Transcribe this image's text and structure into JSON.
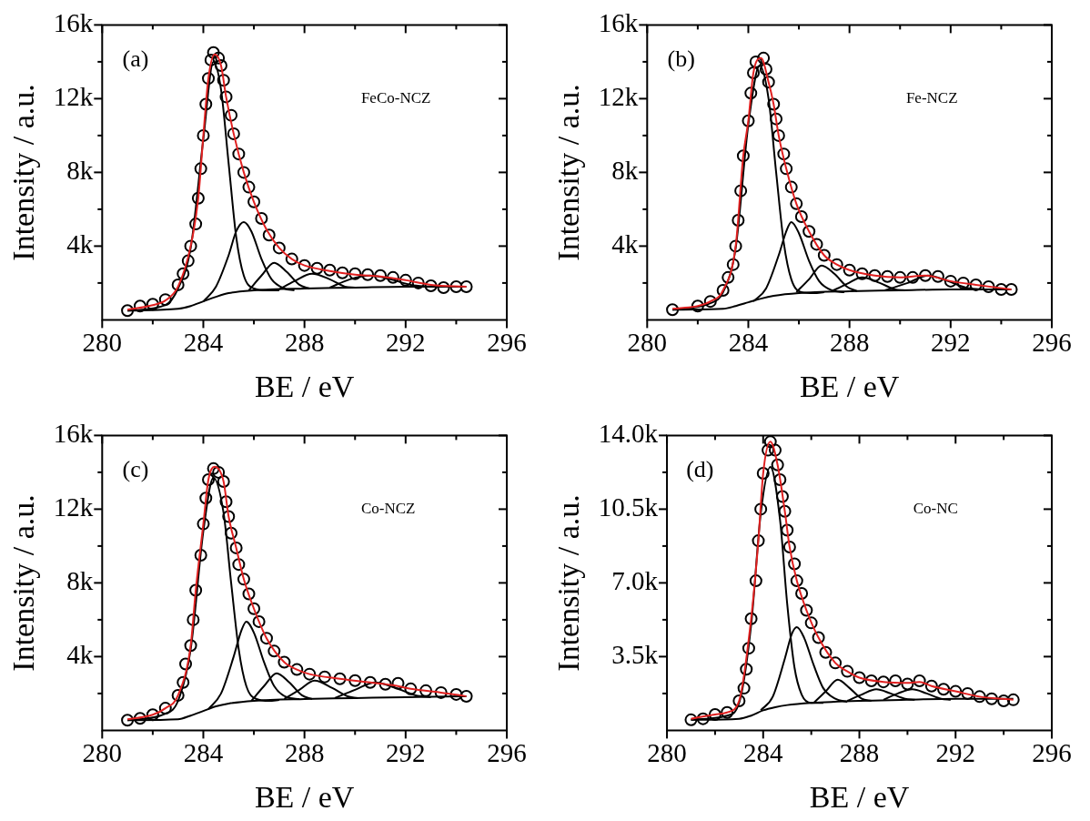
{
  "chart_data": [
    {
      "type": "line",
      "xlabel": "BE / eV",
      "ylabel": "Intensity / a.u.",
      "annotations": [
        "(a)",
        "FeCo-NCZ"
      ],
      "xlim": [
        280,
        296
      ],
      "xticks": [
        280,
        {
          "value": 282,
          "label": null
        },
        284,
        {
          "value": 286,
          "label": null
        },
        288,
        {
          "value": 290,
          "label": null
        },
        292,
        {
          "value": 294,
          "label": null
        },
        296
      ],
      "ylim": [
        0,
        16000
      ],
      "yticks": [
        {
          "value": 2000,
          "label": null
        },
        {
          "value": 4000,
          "label": "4k"
        },
        {
          "value": 6000,
          "label": null
        },
        {
          "value": 8000,
          "label": "8k"
        },
        {
          "value": 10000,
          "label": null
        },
        {
          "value": 12000,
          "label": "12k"
        },
        {
          "value": 14000,
          "label": null
        },
        {
          "value": 16000,
          "label": "16k"
        }
      ],
      "series": [
        {
          "type": "line",
          "color": "#000000",
          "x": [
            281.0,
            283.0,
            283.5,
            284.0,
            284.5,
            285.0,
            286.0,
            288.0,
            290.0,
            292.0,
            294.4
          ],
          "values": [
            500,
            600,
            750,
            1000,
            1250,
            1450,
            1600,
            1700,
            1750,
            1800,
            1800
          ]
        },
        {
          "type": "line",
          "color": "#000000",
          "x": [
            281.0,
            282.5,
            283.0,
            283.5,
            284.0,
            284.4,
            284.7,
            285.0,
            285.3,
            285.6,
            286.0,
            286.5,
            287.0
          ],
          "values": [
            500,
            800,
            1700,
            3900,
            9800,
            14000,
            12500,
            8500,
            4500,
            2400,
            1700,
            1600,
            1600
          ]
        },
        {
          "type": "line",
          "color": "#000000",
          "x": [
            284.0,
            284.5,
            285.0,
            285.3,
            285.6,
            285.9,
            286.3,
            286.7,
            287.2,
            287.6
          ],
          "values": [
            1000,
            1800,
            3500,
            4800,
            5300,
            4800,
            3300,
            2200,
            1700,
            1600
          ]
        },
        {
          "type": "line",
          "color": "#000000",
          "x": [
            285.8,
            286.3,
            286.8,
            287.3,
            287.8,
            288.2
          ],
          "values": [
            1600,
            2400,
            3100,
            2600,
            1900,
            1700
          ]
        },
        {
          "type": "line",
          "color": "#000000",
          "x": [
            287.0,
            287.6,
            288.3,
            289.0,
            289.6,
            290.0
          ],
          "values": [
            1650,
            2100,
            2500,
            2200,
            1800,
            1750
          ]
        },
        {
          "type": "line",
          "color": "#000000",
          "x": [
            289.0,
            289.8,
            290.6,
            291.4,
            292.2,
            293.0
          ],
          "values": [
            1750,
            2200,
            2400,
            2200,
            1900,
            1800
          ]
        },
        {
          "type": "scatter",
          "marker": "circle",
          "color": "#000000",
          "x": [
            281.0,
            281.5,
            282.0,
            282.5,
            283.0,
            283.2,
            283.4,
            283.5,
            283.7,
            283.8,
            283.9,
            284.0,
            284.1,
            284.2,
            284.3,
            284.4,
            284.6,
            284.7,
            284.8,
            284.9,
            285.1,
            285.2,
            285.4,
            285.6,
            285.8,
            286.0,
            286.3,
            286.6,
            287.0,
            287.5,
            288.0,
            288.5,
            289.0,
            289.5,
            290.0,
            290.5,
            291.0,
            291.5,
            292.0,
            292.5,
            293.0,
            293.5,
            294.0,
            294.4
          ],
          "values": [
            500,
            750,
            850,
            1100,
            1900,
            2500,
            3200,
            4000,
            5200,
            6600,
            8200,
            10000,
            11700,
            13100,
            14100,
            14500,
            14200,
            13800,
            13000,
            12100,
            11100,
            10100,
            9000,
            8000,
            7200,
            6400,
            5500,
            4600,
            3900,
            3300,
            2950,
            2800,
            2700,
            2550,
            2500,
            2450,
            2400,
            2300,
            2150,
            2000,
            1850,
            1750,
            1800,
            1800
          ]
        },
        {
          "type": "line",
          "color": "#e02020",
          "x": [
            281.0,
            282.0,
            282.5,
            283.0,
            283.5,
            283.8,
            284.0,
            284.2,
            284.45,
            284.7,
            284.9,
            285.2,
            285.6,
            286.0,
            286.5,
            287.0,
            287.5,
            288.0,
            289.0,
            290.0,
            291.0,
            292.0,
            293.0,
            294.4
          ],
          "values": [
            550,
            800,
            1050,
            1800,
            4000,
            6600,
            10000,
            13100,
            14400,
            13800,
            12100,
            10100,
            8000,
            6400,
            4900,
            3900,
            3300,
            2950,
            2650,
            2450,
            2350,
            2150,
            1900,
            1800
          ]
        }
      ]
    },
    {
      "type": "line",
      "xlabel": "BE / eV",
      "ylabel": "Intensity / a.u.",
      "annotations": [
        "(b)",
        "Fe-NCZ"
      ],
      "xlim": [
        280,
        296
      ],
      "xticks": [
        280,
        {
          "value": 282,
          "label": null
        },
        284,
        {
          "value": 286,
          "label": null
        },
        288,
        {
          "value": 290,
          "label": null
        },
        292,
        {
          "value": 294,
          "label": null
        },
        296
      ],
      "ylim": [
        0,
        16000
      ],
      "yticks": [
        {
          "value": 2000,
          "label": null
        },
        {
          "value": 4000,
          "label": "4k"
        },
        {
          "value": 6000,
          "label": null
        },
        {
          "value": 8000,
          "label": "8k"
        },
        {
          "value": 10000,
          "label": null
        },
        {
          "value": 12000,
          "label": "12k"
        },
        {
          "value": 14000,
          "label": null
        },
        {
          "value": 16000,
          "label": "16k"
        }
      ],
      "series": [
        {
          "type": "line",
          "color": "#000000",
          "x": [
            281.0,
            283.0,
            283.5,
            284.0,
            284.5,
            285.0,
            286.0,
            288.0,
            290.0,
            292.0,
            294.4
          ],
          "values": [
            550,
            600,
            750,
            950,
            1150,
            1300,
            1450,
            1550,
            1600,
            1650,
            1650
          ]
        },
        {
          "type": "line",
          "color": "#000000",
          "x": [
            281.0,
            282.5,
            283.0,
            283.5,
            284.0,
            284.45,
            284.8,
            285.1,
            285.4,
            285.7,
            286.1,
            286.6,
            287.0
          ],
          "values": [
            550,
            900,
            1500,
            3900,
            10600,
            13800,
            12000,
            8000,
            4200,
            2200,
            1500,
            1450,
            1500
          ]
        },
        {
          "type": "line",
          "color": "#000000",
          "x": [
            284.2,
            284.7,
            285.2,
            285.5,
            285.7,
            286.0,
            286.4,
            286.8,
            287.3,
            287.8
          ],
          "values": [
            1000,
            1700,
            3500,
            4800,
            5300,
            4700,
            3200,
            2100,
            1600,
            1500
          ]
        },
        {
          "type": "line",
          "color": "#000000",
          "x": [
            285.9,
            286.4,
            286.9,
            287.4,
            287.9,
            288.3
          ],
          "values": [
            1500,
            2200,
            2950,
            2500,
            1800,
            1550
          ]
        },
        {
          "type": "line",
          "color": "#000000",
          "x": [
            287.3,
            287.9,
            288.5,
            289.2,
            289.8,
            290.2
          ],
          "values": [
            1550,
            1950,
            2300,
            2000,
            1650,
            1600
          ]
        },
        {
          "type": "line",
          "color": "#000000",
          "x": [
            289.4,
            290.3,
            291.1,
            291.9,
            292.6,
            293.2
          ],
          "values": [
            1600,
            2000,
            2400,
            2100,
            1750,
            1650
          ]
        },
        {
          "type": "scatter",
          "marker": "circle",
          "color": "#000000",
          "x": [
            281.0,
            282.0,
            282.5,
            283.0,
            283.2,
            283.4,
            283.5,
            283.6,
            283.7,
            283.8,
            284.0,
            284.1,
            284.2,
            284.3,
            284.6,
            284.7,
            284.8,
            285.0,
            285.1,
            285.2,
            285.4,
            285.5,
            285.7,
            285.9,
            286.1,
            286.4,
            286.7,
            287.0,
            287.5,
            288.0,
            288.5,
            289.0,
            289.5,
            290.0,
            290.5,
            291.0,
            291.5,
            292.0,
            292.5,
            293.0,
            293.5,
            294.0,
            294.4
          ],
          "values": [
            550,
            750,
            1000,
            1600,
            2300,
            3000,
            4000,
            5400,
            7000,
            8900,
            10800,
            12300,
            13400,
            14000,
            14200,
            13600,
            12900,
            11700,
            10900,
            10000,
            9000,
            8200,
            7200,
            6300,
            5600,
            4800,
            4100,
            3500,
            3000,
            2700,
            2500,
            2400,
            2350,
            2300,
            2300,
            2400,
            2350,
            2100,
            2000,
            1900,
            1800,
            1650,
            1650
          ]
        },
        {
          "type": "line",
          "color": "#e02020",
          "x": [
            281.0,
            282.0,
            282.5,
            283.0,
            283.5,
            283.8,
            284.0,
            284.2,
            284.5,
            284.8,
            285.0,
            285.2,
            285.5,
            285.9,
            286.4,
            287.0,
            287.5,
            288.0,
            289.0,
            290.0,
            291.0,
            292.0,
            293.0,
            294.4
          ],
          "values": [
            600,
            750,
            1000,
            1600,
            4000,
            8900,
            10800,
            13400,
            14200,
            12900,
            11700,
            10000,
            8200,
            6300,
            4800,
            3500,
            3000,
            2700,
            2400,
            2300,
            2400,
            2100,
            1900,
            1650
          ]
        }
      ]
    },
    {
      "type": "line",
      "xlabel": "BE / eV",
      "ylabel": "Intensity / a.u.",
      "annotations": [
        "(c)",
        "Co-NCZ"
      ],
      "xlim": [
        280,
        296
      ],
      "xticks": [
        280,
        {
          "value": 282,
          "label": null
        },
        284,
        {
          "value": 286,
          "label": null
        },
        288,
        {
          "value": 290,
          "label": null
        },
        292,
        {
          "value": 294,
          "label": null
        },
        296
      ],
      "ylim": [
        0,
        16000
      ],
      "yticks": [
        {
          "value": 2000,
          "label": null
        },
        {
          "value": 4000,
          "label": "4k"
        },
        {
          "value": 6000,
          "label": null
        },
        {
          "value": 8000,
          "label": "8k"
        },
        {
          "value": 10000,
          "label": null
        },
        {
          "value": 12000,
          "label": "12k"
        },
        {
          "value": 14000,
          "label": null
        },
        {
          "value": 16000,
          "label": "16k"
        }
      ],
      "series": [
        {
          "type": "line",
          "color": "#000000",
          "x": [
            281.0,
            283.0,
            283.5,
            284.0,
            284.5,
            285.0,
            286.0,
            288.0,
            290.0,
            292.0,
            294.4
          ],
          "values": [
            550,
            600,
            800,
            1050,
            1300,
            1450,
            1600,
            1700,
            1750,
            1800,
            1850
          ]
        },
        {
          "type": "line",
          "color": "#000000",
          "x": [
            281.0,
            282.5,
            283.0,
            283.5,
            284.0,
            284.4,
            284.8,
            285.1,
            285.4,
            285.7,
            286.1,
            286.6,
            287.0
          ],
          "values": [
            550,
            900,
            1600,
            4400,
            10800,
            13700,
            11800,
            8000,
            4400,
            2400,
            1700,
            1600,
            1650
          ]
        },
        {
          "type": "line",
          "color": "#000000",
          "x": [
            284.2,
            284.7,
            285.2,
            285.5,
            285.7,
            286.0,
            286.4,
            286.8,
            287.3,
            287.8
          ],
          "values": [
            1150,
            2000,
            4000,
            5400,
            5900,
            5300,
            3700,
            2400,
            1800,
            1700
          ]
        },
        {
          "type": "line",
          "color": "#000000",
          "x": [
            285.9,
            286.4,
            286.9,
            287.4,
            287.9,
            288.3
          ],
          "values": [
            1600,
            2400,
            3100,
            2600,
            1900,
            1700
          ]
        },
        {
          "type": "line",
          "color": "#000000",
          "x": [
            287.2,
            287.8,
            288.4,
            289.1,
            289.7,
            290.1
          ],
          "values": [
            1700,
            2200,
            2700,
            2300,
            1850,
            1750
          ]
        },
        {
          "type": "line",
          "color": "#000000",
          "x": [
            289.2,
            290.0,
            290.8,
            291.6,
            292.4,
            293.0
          ],
          "values": [
            1750,
            2200,
            2600,
            2300,
            1900,
            1800
          ]
        },
        {
          "type": "scatter",
          "marker": "circle",
          "color": "#000000",
          "x": [
            281.0,
            281.5,
            282.0,
            282.5,
            283.0,
            283.2,
            283.3,
            283.5,
            283.6,
            283.7,
            283.9,
            284.0,
            284.1,
            284.2,
            284.4,
            284.6,
            284.8,
            284.9,
            285.0,
            285.1,
            285.3,
            285.4,
            285.6,
            285.8,
            286.0,
            286.2,
            286.5,
            286.8,
            287.2,
            287.7,
            288.2,
            288.8,
            289.4,
            290.0,
            290.6,
            291.2,
            291.7,
            292.2,
            292.8,
            293.4,
            294.0,
            294.4
          ],
          "values": [
            550,
            650,
            850,
            1200,
            1900,
            2600,
            3600,
            4600,
            6000,
            7600,
            9500,
            11200,
            12600,
            13600,
            14200,
            14000,
            13500,
            12400,
            11600,
            10700,
            9900,
            9000,
            8200,
            7400,
            6600,
            5900,
            5000,
            4300,
            3700,
            3300,
            3050,
            2900,
            2800,
            2700,
            2600,
            2500,
            2550,
            2250,
            2150,
            2050,
            1950,
            1850
          ]
        },
        {
          "type": "line",
          "color": "#e02020",
          "x": [
            281.0,
            282.0,
            282.5,
            283.0,
            283.5,
            283.7,
            284.0,
            284.2,
            284.45,
            284.8,
            285.0,
            285.3,
            285.6,
            286.0,
            286.5,
            287.2,
            287.7,
            288.2,
            289.4,
            290.6,
            291.5,
            292.2,
            293.4,
            294.4
          ],
          "values": [
            600,
            850,
            1200,
            1900,
            4600,
            7600,
            11200,
            13600,
            14300,
            13500,
            11600,
            9900,
            8200,
            6600,
            5000,
            3700,
            3300,
            3050,
            2800,
            2600,
            2450,
            2250,
            2050,
            1850
          ]
        }
      ]
    },
    {
      "type": "line",
      "xlabel": "BE / eV",
      "ylabel": "Intensity / a.u.",
      "annotations": [
        "(d)",
        "Co-NC"
      ],
      "xlim": [
        280,
        296
      ],
      "xticks": [
        280,
        {
          "value": 282,
          "label": null
        },
        284,
        {
          "value": 286,
          "label": null
        },
        288,
        {
          "value": 290,
          "label": null
        },
        292,
        {
          "value": 294,
          "label": null
        },
        296
      ],
      "ylim": [
        0,
        14000
      ],
      "yticks": [
        {
          "value": 1750,
          "label": null
        },
        {
          "value": 3500,
          "label": "3.5k"
        },
        {
          "value": 5250,
          "label": null
        },
        {
          "value": 7000,
          "label": "7.0k"
        },
        {
          "value": 8750,
          "label": null
        },
        {
          "value": 10500,
          "label": "10.5k"
        },
        {
          "value": 12250,
          "label": null
        },
        {
          "value": 14000,
          "label": "14.0k"
        }
      ],
      "series": [
        {
          "type": "line",
          "color": "#000000",
          "x": [
            281.0,
            283.0,
            283.5,
            284.0,
            284.5,
            285.0,
            286.0,
            288.0,
            290.0,
            292.0,
            294.4
          ],
          "values": [
            500,
            550,
            700,
            950,
            1100,
            1200,
            1300,
            1400,
            1450,
            1500,
            1500
          ]
        },
        {
          "type": "line",
          "color": "#000000",
          "x": [
            281.0,
            282.5,
            283.0,
            283.5,
            283.9,
            284.3,
            284.7,
            285.0,
            285.3,
            285.6,
            286.0,
            286.5
          ],
          "values": [
            500,
            700,
            1300,
            5000,
            10300,
            12500,
            10000,
            6000,
            3000,
            1700,
            1300,
            1300
          ]
        },
        {
          "type": "line",
          "color": "#000000",
          "x": [
            283.9,
            284.4,
            284.9,
            285.2,
            285.4,
            285.7,
            286.1,
            286.5,
            287.0,
            287.5
          ],
          "values": [
            950,
            1600,
            3400,
            4600,
            4900,
            4400,
            3100,
            2000,
            1500,
            1350
          ]
        },
        {
          "type": "line",
          "color": "#000000",
          "x": [
            286.1,
            286.6,
            287.1,
            287.6,
            288.1,
            288.5
          ],
          "values": [
            1300,
            1850,
            2400,
            2000,
            1500,
            1400
          ]
        },
        {
          "type": "line",
          "color": "#000000",
          "x": [
            287.5,
            288.1,
            288.7,
            289.3,
            289.9,
            290.3
          ],
          "values": [
            1400,
            1700,
            1950,
            1750,
            1500,
            1450
          ]
        },
        {
          "type": "line",
          "color": "#000000",
          "x": [
            289.0,
            289.6,
            290.2,
            290.8,
            291.4,
            291.8
          ],
          "values": [
            1450,
            1750,
            1950,
            1750,
            1500,
            1450
          ]
        },
        {
          "type": "scatter",
          "marker": "circle",
          "color": "#000000",
          "x": [
            281.0,
            281.5,
            282.0,
            282.5,
            283.0,
            283.2,
            283.3,
            283.4,
            283.5,
            283.7,
            283.8,
            283.9,
            284.0,
            284.2,
            284.3,
            284.5,
            284.6,
            284.7,
            284.8,
            284.9,
            285.0,
            285.1,
            285.3,
            285.4,
            285.6,
            285.8,
            286.0,
            286.3,
            286.6,
            287.0,
            287.5,
            288.0,
            288.5,
            289.0,
            289.5,
            290.0,
            290.5,
            291.0,
            291.5,
            292.0,
            292.5,
            293.0,
            293.5,
            294.0,
            294.4
          ],
          "values": [
            500,
            550,
            750,
            850,
            1400,
            2000,
            2900,
            3900,
            5300,
            7100,
            9000,
            10500,
            12200,
            13300,
            13700,
            13300,
            12600,
            11900,
            11100,
            10400,
            9500,
            8700,
            7900,
            7100,
            6500,
            5700,
            5100,
            4400,
            3700,
            3200,
            2800,
            2500,
            2350,
            2300,
            2350,
            2200,
            2350,
            2100,
            1950,
            1850,
            1750,
            1600,
            1500,
            1400,
            1450
          ]
        },
        {
          "type": "line",
          "color": "#e02020",
          "x": [
            281.0,
            282.0,
            282.5,
            283.0,
            283.5,
            283.8,
            284.0,
            284.3,
            284.6,
            284.9,
            285.1,
            285.4,
            285.8,
            286.3,
            287.0,
            287.5,
            288.0,
            289.0,
            290.0,
            290.5,
            291.0,
            292.0,
            293.0,
            294.4
          ],
          "values": [
            550,
            750,
            850,
            1400,
            5300,
            9000,
            12200,
            13700,
            12600,
            10400,
            8700,
            7100,
            5700,
            4400,
            3200,
            2800,
            2500,
            2300,
            2250,
            2300,
            2100,
            1850,
            1600,
            1450
          ]
        }
      ]
    }
  ]
}
